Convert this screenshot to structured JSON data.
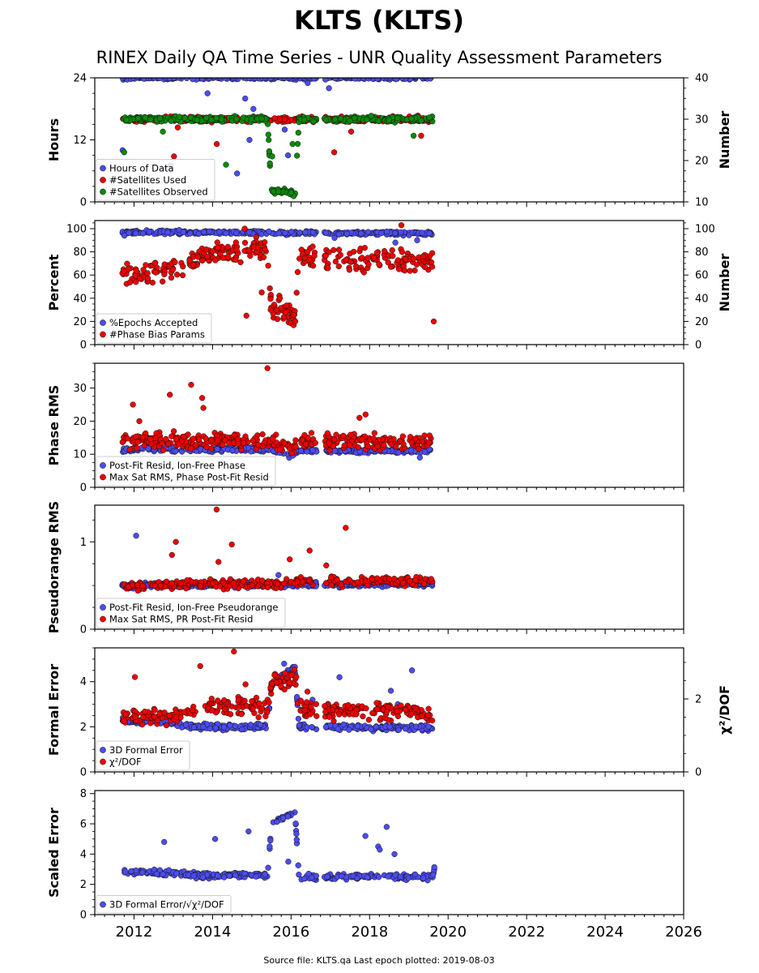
{
  "title": "KLTS (KLTS)",
  "subtitle": "RINEX Daily QA Time Series - UNR Quality Assessment Parameters",
  "footer": "Source file: KLTS.qa Last epoch plotted: 2019-08-03",
  "colors": {
    "blue": "#4c4cf0",
    "red": "#ee0000",
    "green": "#0a8a0a",
    "edge": "#111111"
  },
  "chart_data": [
    {
      "type": "scatter",
      "ylabel": "Hours",
      "y2label": "Number",
      "xlim": [
        2011.0,
        2026.0
      ],
      "xticks": [
        "2012",
        "2014",
        "2016",
        "2018",
        "2020",
        "2022",
        "2024",
        "2026"
      ],
      "ylim": [
        0,
        24
      ],
      "yticks": [
        "0",
        "12",
        "24"
      ],
      "y2lim": [
        10,
        40
      ],
      "y2ticks": [
        "10",
        "20",
        "30",
        "40"
      ],
      "legend_position": "lower-left",
      "series": [
        {
          "name": "Hours of Data",
          "color": "blue",
          "axis": "left",
          "profile": [
            [
              2011.7,
              24
            ],
            [
              2019.6,
              24
            ]
          ],
          "noise": 0.3,
          "outlier_values": [
            23,
            22,
            21,
            20,
            18,
            16,
            14,
            12,
            10,
            9,
            7,
            5.5
          ]
        },
        {
          "name": "#Satellites Used",
          "color": "red",
          "axis": "right",
          "profile": [
            [
              2011.7,
              30
            ],
            [
              2015.5,
              30
            ],
            [
              2016.2,
              30
            ],
            [
              2019.6,
              30
            ]
          ],
          "noise": 0.6,
          "outlier_values": [
            28,
            27,
            26,
            24,
            22,
            21
          ]
        },
        {
          "name": "#Satellites Observed",
          "color": "green",
          "axis": "right",
          "profile": [
            [
              2011.7,
              30
            ],
            [
              2015.4,
              30
            ],
            [
              2015.5,
              12.5
            ],
            [
              2015.9,
              12.5
            ],
            [
              2016.1,
              11.5
            ],
            [
              2016.2,
              30
            ],
            [
              2019.6,
              30
            ]
          ],
          "noise": 0.6,
          "outlier_values": [
            27,
            26,
            24,
            22,
            21,
            19
          ]
        }
      ]
    },
    {
      "type": "scatter",
      "ylabel": "Percent",
      "y2label": "Number",
      "xlim": [
        2011.0,
        2026.0
      ],
      "xticks": [
        "2012",
        "2014",
        "2016",
        "2018",
        "2020",
        "2022",
        "2024",
        "2026"
      ],
      "ylim": [
        0,
        107
      ],
      "yticks": [
        "0",
        "20",
        "40",
        "60",
        "80",
        "100"
      ],
      "y2lim": [
        0,
        107
      ],
      "y2ticks": [
        "0",
        "20",
        "40",
        "60",
        "80",
        "100"
      ],
      "legend_position": "lower-left",
      "series": [
        {
          "name": "%Epochs Accepted",
          "color": "blue",
          "axis": "left",
          "profile": [
            [
              2011.7,
              97
            ],
            [
              2019.6,
              96
            ]
          ],
          "noise": 1.5,
          "outlier_values": [
            94,
            92,
            90,
            88
          ]
        },
        {
          "name": "#Phase Bias Params",
          "color": "red",
          "axis": "right",
          "profile": [
            [
              2011.7,
              60
            ],
            [
              2012.5,
              62
            ],
            [
              2012.8,
              62
            ],
            [
              2013.4,
              70
            ],
            [
              2014.0,
              80
            ],
            [
              2015.4,
              82
            ],
            [
              2015.5,
              32
            ],
            [
              2015.9,
              30
            ],
            [
              2016.1,
              24
            ],
            [
              2016.2,
              75
            ],
            [
              2019.6,
              72
            ],
            [
              2019.65,
              55
            ]
          ],
          "noise": 9,
          "outlier_values": [
            103,
            100,
            45,
            40,
            30,
            25,
            20
          ]
        }
      ]
    },
    {
      "type": "scatter",
      "ylabel": "Phase RMS",
      "xlim": [
        2011.0,
        2026.0
      ],
      "xticks": [
        "2012",
        "2014",
        "2016",
        "2018",
        "2020",
        "2022",
        "2024",
        "2026"
      ],
      "ylim": [
        0,
        37.5
      ],
      "yticks": [
        "0",
        "10",
        "20",
        "30"
      ],
      "legend_position": "lower-left",
      "series": [
        {
          "name": "Post-Fit Resid, Ion-Free Phase",
          "color": "blue",
          "axis": "left",
          "profile": [
            [
              2011.7,
              11.5
            ],
            [
              2015.5,
              11.5
            ],
            [
              2016.0,
              9.5
            ],
            [
              2016.2,
              11
            ],
            [
              2019.6,
              11
            ]
          ],
          "noise": 0.7,
          "outlier_values": [
            13,
            9
          ]
        },
        {
          "name": "Max Sat RMS, Phase Post-Fit Resid",
          "color": "red",
          "axis": "left",
          "profile": [
            [
              2011.7,
              14
            ],
            [
              2015.5,
              14
            ],
            [
              2016.0,
              12
            ],
            [
              2016.2,
              14
            ],
            [
              2019.6,
              14
            ]
          ],
          "noise": 2.2,
          "outlier_values": [
            36,
            31,
            28,
            27,
            25,
            24,
            22,
            21,
            20
          ]
        }
      ]
    },
    {
      "type": "scatter",
      "ylabel": "Pseudorange RMS",
      "xlim": [
        2011.0,
        2026.0
      ],
      "xticks": [
        "2012",
        "2014",
        "2016",
        "2018",
        "2020",
        "2022",
        "2024",
        "2026"
      ],
      "ylim": [
        0,
        1.42
      ],
      "yticks": [
        "0",
        "1"
      ],
      "legend_position": "lower-left",
      "series": [
        {
          "name": "Post-Fit Resid, Ion-Free Pseudorange",
          "color": "blue",
          "axis": "left",
          "profile": [
            [
              2011.7,
              0.5
            ],
            [
              2019.6,
              0.52
            ]
          ],
          "noise": 0.03,
          "outlier_values": [
            1.07,
            0.62
          ]
        },
        {
          "name": "Max Sat RMS, PR Post-Fit Resid",
          "color": "red",
          "axis": "left",
          "profile": [
            [
              2011.7,
              0.5
            ],
            [
              2015.5,
              0.52
            ],
            [
              2016.2,
              0.55
            ],
            [
              2019.6,
              0.55
            ]
          ],
          "noise": 0.05,
          "outlier_values": [
            1.37,
            1.16,
            1.0,
            0.97,
            0.9,
            0.85,
            0.8,
            0.77,
            0.73
          ]
        }
      ]
    },
    {
      "type": "scatter",
      "ylabel": "Formal Error",
      "y2label": "χ²/DOF",
      "xlim": [
        2011.0,
        2026.0
      ],
      "xticks": [
        "2012",
        "2014",
        "2016",
        "2018",
        "2020",
        "2022",
        "2024",
        "2026"
      ],
      "ylim": [
        0,
        5.5
      ],
      "yticks": [
        "0",
        "2",
        "4"
      ],
      "y2lim": [
        0,
        3.4
      ],
      "y2ticks": [
        "0",
        "2"
      ],
      "legend_position": "lower-left",
      "series": [
        {
          "name": "3D Formal Error",
          "color": "blue",
          "axis": "left",
          "profile": [
            [
              2011.7,
              2.3
            ],
            [
              2013.0,
              2.2
            ],
            [
              2013.4,
              2.0
            ],
            [
              2015.4,
              2.0
            ],
            [
              2015.5,
              3.9
            ],
            [
              2016.1,
              4.6
            ],
            [
              2016.2,
              2.0
            ],
            [
              2019.6,
              1.95
            ]
          ],
          "noise": 0.12,
          "outlier_values": [
            4.8,
            4.5,
            4.2,
            3.6,
            3.2,
            3.0
          ]
        },
        {
          "name": "χ²/DOF",
          "color": "red",
          "axis": "right",
          "profile": [
            [
              2011.7,
              1.5
            ],
            [
              2012.5,
              1.55
            ],
            [
              2013.0,
              1.5
            ],
            [
              2013.5,
              1.75
            ],
            [
              2015.4,
              1.8
            ],
            [
              2015.5,
              2.4
            ],
            [
              2016.1,
              2.6
            ],
            [
              2016.2,
              1.7
            ],
            [
              2019.6,
              1.65
            ]
          ],
          "noise": 0.22,
          "outlier_values": [
            3.3,
            2.9,
            2.6,
            2.4,
            2.2
          ]
        }
      ]
    },
    {
      "type": "scatter",
      "ylabel": "Scaled Error",
      "xlim": [
        2011.0,
        2026.0
      ],
      "xticks": [
        "2012",
        "2014",
        "2016",
        "2018",
        "2020",
        "2022",
        "2024",
        "2026"
      ],
      "ylim": [
        0,
        8.2
      ],
      "yticks": [
        "0",
        "2",
        "4",
        "6",
        "8"
      ],
      "legend_position": "lower-left",
      "series": [
        {
          "name": "3D Formal Error/√χ²/DOF",
          "color": "blue",
          "axis": "left",
          "profile": [
            [
              2011.7,
              2.8
            ],
            [
              2013.0,
              2.8
            ],
            [
              2013.5,
              2.6
            ],
            [
              2015.4,
              2.6
            ],
            [
              2015.5,
              6.0
            ],
            [
              2016.1,
              6.8
            ],
            [
              2016.2,
              2.5
            ],
            [
              2019.6,
              2.5
            ],
            [
              2019.65,
              3.0
            ]
          ],
          "noise": 0.18,
          "outlier_values": [
            5.8,
            5.5,
            5.2,
            5.0,
            4.8,
            4.5,
            4.3,
            4.0,
            3.5
          ]
        }
      ]
    }
  ]
}
